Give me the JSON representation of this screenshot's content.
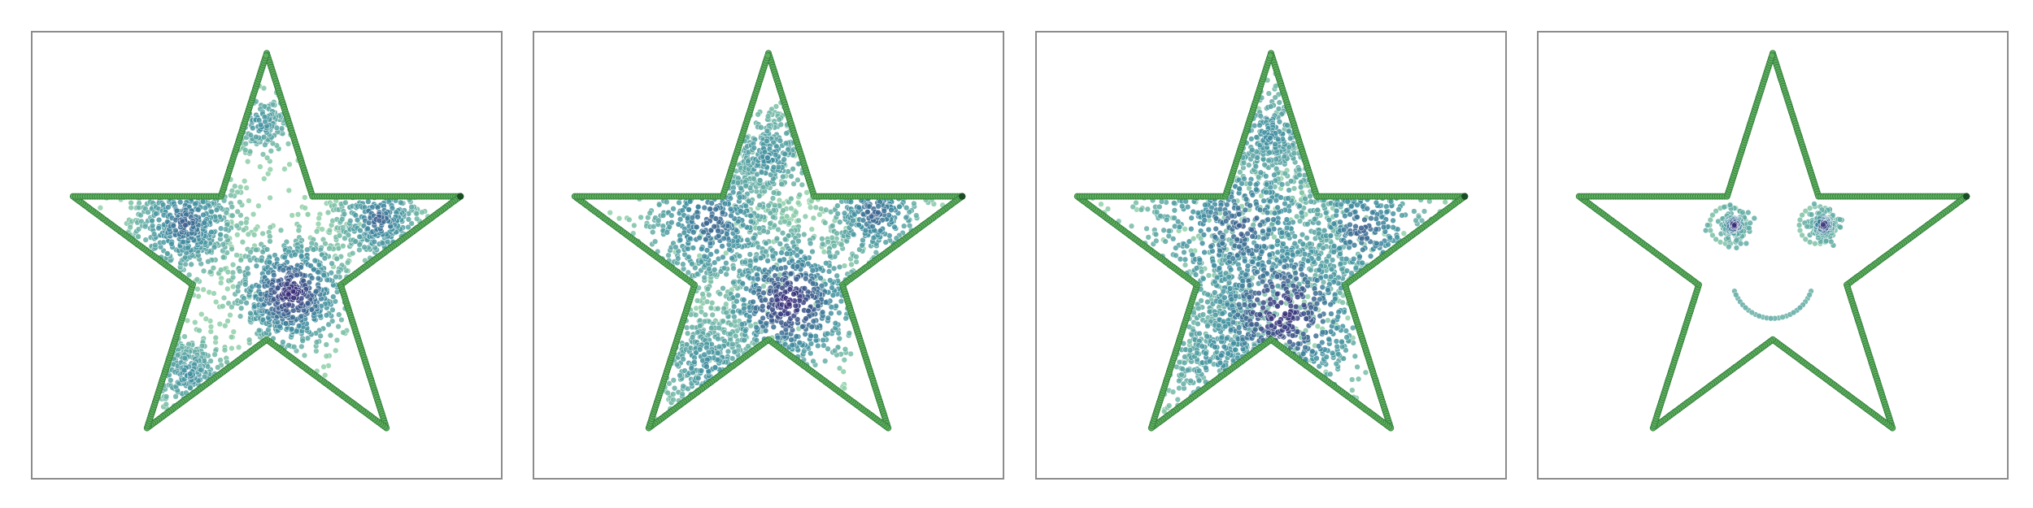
{
  "figure": {
    "colors": {
      "outline_fill": "#5fae5f",
      "outline_edge": "#2f7d3a",
      "outline_end": "#1b4d25",
      "point_light": "#8fd0a8",
      "point_mid": "#3f8fa0",
      "point_dark": "#3a2a78",
      "frame": "#8c8c8c"
    }
  },
  "chart_data": [
    {
      "type": "scatter",
      "title": "",
      "xlabel": "",
      "ylabel": "",
      "grid": false,
      "axes_visible": false,
      "xlim": [
        -1.15,
        1.15
      ],
      "ylim": [
        -1.05,
        1.1
      ],
      "outline": {
        "shape": "five-point star",
        "vertices": [
          [
            0,
            1
          ],
          [
            0.2245,
            0.309
          ],
          [
            0.9511,
            0.309
          ],
          [
            0.3633,
            -0.118
          ],
          [
            0.5878,
            -0.809
          ],
          [
            0,
            -0.382
          ],
          [
            -0.5878,
            -0.809
          ],
          [
            -0.3633,
            -0.118
          ],
          [
            -0.9511,
            0.309
          ],
          [
            -0.2245,
            0.309
          ],
          [
            0,
            1
          ]
        ]
      },
      "point_clusters": [
        {
          "center": [
            0.12,
            -0.16
          ],
          "spread": 0.16,
          "count": 650,
          "density": "high"
        },
        {
          "center": [
            -0.4,
            0.18
          ],
          "spread": 0.15,
          "count": 500,
          "density": "medium"
        },
        {
          "center": [
            0.55,
            0.2
          ],
          "spread": 0.12,
          "count": 280,
          "density": "medium"
        },
        {
          "center": [
            -0.38,
            -0.55
          ],
          "spread": 0.11,
          "count": 220,
          "density": "low"
        },
        {
          "center": [
            -0.03,
            0.66
          ],
          "spread": 0.09,
          "count": 150,
          "density": "low"
        }
      ]
    },
    {
      "type": "scatter",
      "title": "",
      "xlabel": "",
      "ylabel": "",
      "grid": false,
      "axes_visible": false,
      "xlim": [
        -1.15,
        1.15
      ],
      "ylim": [
        -1.05,
        1.1
      ],
      "outline": {
        "shape": "five-point star",
        "same_as_panel": 1
      },
      "point_clusters": [
        {
          "center": [
            0.1,
            -0.2
          ],
          "spread": 0.2,
          "count": 650,
          "density": "high"
        },
        {
          "center": [
            -0.28,
            0.18
          ],
          "spread": 0.2,
          "count": 480,
          "density": "medium"
        },
        {
          "center": [
            0.52,
            0.23
          ],
          "spread": 0.14,
          "count": 260,
          "density": "medium"
        },
        {
          "center": [
            -0.3,
            -0.5
          ],
          "spread": 0.16,
          "count": 300,
          "density": "low"
        },
        {
          "center": [
            0.0,
            0.5
          ],
          "spread": 0.14,
          "count": 300,
          "density": "low"
        }
      ]
    },
    {
      "type": "scatter",
      "title": "",
      "xlabel": "",
      "ylabel": "",
      "grid": false,
      "axes_visible": false,
      "xlim": [
        -1.15,
        1.15
      ],
      "ylim": [
        -1.05,
        1.1
      ],
      "outline": {
        "shape": "five-point star",
        "same_as_panel": 1
      },
      "point_clusters": [
        {
          "center": [
            0.05,
            -0.25
          ],
          "spread": 0.26,
          "count": 700,
          "density": "high"
        },
        {
          "center": [
            -0.15,
            0.15
          ],
          "spread": 0.3,
          "count": 600,
          "density": "medium"
        },
        {
          "center": [
            0.45,
            0.15
          ],
          "spread": 0.2,
          "count": 300,
          "density": "medium"
        },
        {
          "center": [
            -0.25,
            -0.45
          ],
          "spread": 0.2,
          "count": 300,
          "density": "low"
        },
        {
          "center": [
            0.0,
            0.6
          ],
          "spread": 0.16,
          "count": 250,
          "density": "low"
        }
      ]
    },
    {
      "type": "scatter",
      "title": "",
      "xlabel": "",
      "ylabel": "",
      "grid": false,
      "axes_visible": false,
      "xlim": [
        -1.15,
        1.15
      ],
      "ylim": [
        -1.05,
        1.1
      ],
      "outline": {
        "shape": "five-point star",
        "same_as_panel": 1
      },
      "eyes": [
        {
          "ring_center": [
            -0.22,
            0.17
          ],
          "ring_radius": 0.09,
          "dense_center": [
            -0.19,
            0.17
          ],
          "dense_spread": 0.035,
          "dense_count": 140
        },
        {
          "ring_center": [
            0.22,
            0.17
          ],
          "ring_radius": 0.09,
          "dense_center": [
            0.25,
            0.17
          ],
          "dense_spread": 0.035,
          "dense_count": 140
        }
      ],
      "smile": {
        "center": [
          0.0,
          -0.08
        ],
        "radius": 0.2,
        "angle_from_deg": 200,
        "angle_to_deg": 340,
        "count": 26
      }
    }
  ]
}
